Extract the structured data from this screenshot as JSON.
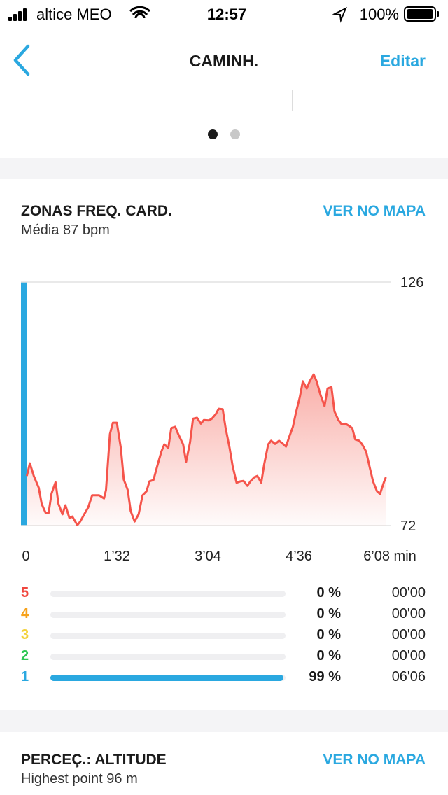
{
  "status_bar": {
    "carrier": "altice MEO",
    "time": "12:57",
    "battery": "100%"
  },
  "nav": {
    "title": "CAMINH.",
    "action": "Editar"
  },
  "hr_section": {
    "title": "ZONAS FREQ. CARD.",
    "link": "VER NO MAPA",
    "subtitle": "Média 87 bpm",
    "chart_data": {
      "type": "area",
      "color": "#f5544b",
      "x": [
        1,
        4,
        8,
        13,
        16,
        20,
        23,
        26,
        30,
        33,
        37,
        40,
        44,
        47,
        52,
        55,
        59,
        63,
        67,
        71,
        74,
        79,
        81,
        85,
        88,
        92,
        96,
        99,
        103,
        106,
        110,
        114,
        118,
        122,
        125,
        129,
        133,
        137,
        140,
        144,
        147,
        151,
        154,
        159,
        162,
        166,
        169,
        173,
        177,
        180,
        185,
        188,
        192,
        195,
        199,
        202,
        206,
        209,
        213,
        217,
        220,
        224,
        227,
        231,
        234,
        238,
        241,
        245,
        248,
        252,
        256,
        259,
        263,
        266,
        270,
        273,
        277,
        280,
        284,
        287,
        291,
        294,
        298,
        302,
        305,
        309,
        312,
        316,
        319,
        323,
        326,
        330,
        333,
        337,
        340,
        344,
        348,
        351,
        355,
        358,
        362,
        364
      ],
      "values": [
        83.0,
        85.8,
        83.0,
        80.4,
        76.8,
        74.8,
        74.8,
        79.1,
        81.6,
        76.8,
        74.5,
        76.5,
        73.7,
        74.0,
        72.1,
        72.9,
        74.5,
        76.0,
        78.7,
        78.7,
        78.7,
        78.0,
        79.9,
        92.3,
        94.8,
        94.8,
        89.2,
        82.2,
        79.9,
        75.2,
        72.9,
        74.5,
        78.7,
        79.6,
        81.8,
        82.1,
        85.3,
        88.4,
        90.0,
        89.2,
        93.6,
        93.9,
        92.3,
        90.0,
        86.1,
        90.5,
        95.7,
        95.9,
        94.6,
        95.4,
        95.3,
        95.7,
        96.7,
        97.9,
        97.8,
        93.6,
        89.2,
        85.3,
        81.5,
        81.8,
        81.9,
        80.8,
        81.8,
        82.7,
        83.0,
        81.5,
        85.6,
        90.0,
        90.8,
        90.1,
        90.8,
        90.3,
        89.5,
        91.5,
        93.9,
        97.0,
        100.5,
        104.0,
        102.4,
        104.0,
        105.5,
        104.0,
        100.9,
        98.5,
        102.4,
        102.7,
        97.3,
        95.4,
        94.5,
        94.6,
        94.2,
        93.6,
        91.1,
        90.8,
        90.0,
        88.4,
        84.6,
        81.8,
        79.6,
        79.0,
        81.6,
        82.7
      ],
      "xlim": [
        0,
        368
      ],
      "xticks": [
        0,
        {
          "value": 92,
          "label": "1’32"
        },
        {
          "value": 184,
          "label": "3’04"
        },
        {
          "value": 276,
          "label": "4’36"
        },
        {
          "value": 368,
          "label": "6’08 min"
        }
      ],
      "ylim": [
        72,
        126
      ],
      "yticks": [
        72,
        126
      ],
      "grid": true
    }
  },
  "zones": {
    "xlim": [
      0,
      100
    ],
    "rows": [
      {
        "name": "5",
        "color": "#f0473e",
        "value": 0,
        "value_label": "0 %",
        "time": "00'00"
      },
      {
        "name": "4",
        "color": "#f7a21b",
        "value": 0,
        "value_label": "0 %",
        "time": "00'00"
      },
      {
        "name": "3",
        "color": "#f3d23b",
        "value": 0,
        "value_label": "0 %",
        "time": "00'00"
      },
      {
        "name": "2",
        "color": "#2dc653",
        "value": 0,
        "value_label": "0 %",
        "time": "00'00"
      },
      {
        "name": "1",
        "color": "#2aa8e0",
        "value": 99,
        "value_label": "99 %",
        "time": "06'06"
      }
    ]
  },
  "altitude_section": {
    "title": "PERCEÇ.: ALTITUDE",
    "link": "VER NO MAPA",
    "subtitle": "Highest point 96 m"
  }
}
